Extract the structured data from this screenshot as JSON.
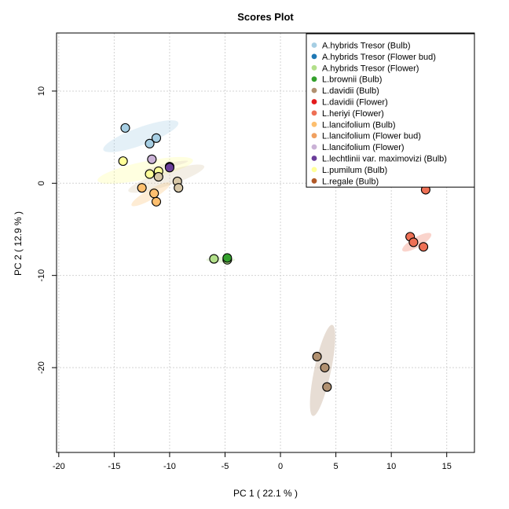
{
  "chart_data": {
    "type": "scatter",
    "title": "Scores Plot",
    "xlabel": "PC 1 ( 22.1 % )",
    "ylabel": "PC 2 ( 12.9 % )",
    "xlim": [
      -20.2,
      17.5
    ],
    "ylim": [
      -29.2,
      16.3
    ],
    "xticks": [
      -20,
      -15,
      -10,
      -5,
      0,
      5,
      10,
      15
    ],
    "yticks": [
      10,
      0,
      -10,
      -20
    ],
    "grid": true,
    "legend_position": "top-right",
    "series": [
      {
        "name": "A.hybrids Tresor (Bulb)",
        "color": "#a6cee3",
        "points": [
          [
            -14.0,
            6.0
          ],
          [
            -11.8,
            4.3
          ],
          [
            -11.2,
            4.9
          ]
        ],
        "ellipse": {
          "cx": -12.6,
          "cy": 5.1,
          "rx": 3.6,
          "ry": 0.8,
          "angle_deg": -20
        }
      },
      {
        "name": "A.hybrids Tresor (Flower bud)",
        "color": "#1f78b4",
        "points": [],
        "ellipse": null
      },
      {
        "name": "A.hybrids Tresor (Flower)",
        "color": "#b2df8a",
        "points": [
          [
            -6.0,
            -8.2
          ],
          [
            -4.8,
            -8.3
          ]
        ],
        "ellipse": {
          "cx": -5.4,
          "cy": -8.3,
          "rx": 1.3,
          "ry": 0.25,
          "angle_deg": 0
        }
      },
      {
        "name": "L.brownii (Bulb)",
        "color": "#33a02c",
        "points": [
          [
            -4.8,
            -8.1
          ]
        ],
        "ellipse": null
      },
      {
        "name": "L.davidii (Bulb)",
        "color": "#b09070",
        "points": [
          [
            3.3,
            -18.8
          ],
          [
            4.0,
            -20.0
          ],
          [
            4.2,
            -22.1
          ]
        ],
        "ellipse": {
          "cx": 3.8,
          "cy": -20.3,
          "rx": 4.2,
          "ry": 0.75,
          "angle_deg": -78
        }
      },
      {
        "name": "L.davidii (Flower)",
        "color": "#e31a1c",
        "points": [],
        "ellipse": null
      },
      {
        "name": "L.heriyi (Flower)",
        "color": "#ee7055",
        "points": [
          [
            11.7,
            -5.8
          ],
          [
            12.0,
            -6.4
          ],
          [
            12.9,
            -6.9
          ],
          [
            13.1,
            -0.7
          ]
        ],
        "ellipse": {
          "cx": 12.3,
          "cy": -6.4,
          "rx": 1.5,
          "ry": 0.45,
          "angle_deg": -30
        }
      },
      {
        "name": "L.lancifolium (Bulb)",
        "color": "#fdbf6f",
        "points": [
          [
            -12.5,
            -0.5
          ],
          [
            -11.4,
            -1.1
          ],
          [
            -11.2,
            -2.0
          ]
        ],
        "ellipse": {
          "cx": -11.7,
          "cy": -1.2,
          "rx": 2.0,
          "ry": 0.45,
          "angle_deg": -30
        }
      },
      {
        "name": "L.lancifolium (Flower bud)",
        "color": "#f0a060",
        "points": [],
        "ellipse": null
      },
      {
        "name": "L.lancifolium (Flower)",
        "color": "#cab2d6",
        "points": [
          [
            -11.6,
            2.6
          ],
          [
            -10.0,
            1.8
          ]
        ],
        "ellipse": {
          "cx": -10.3,
          "cy": 1.9,
          "rx": 2.0,
          "ry": 0.2,
          "angle_deg": -12
        }
      },
      {
        "name": "L.lechtlinii var. maximovizi (Bulb)",
        "color": "#6a3d9a",
        "points": [
          [
            -10.0,
            1.7
          ]
        ],
        "ellipse": null
      },
      {
        "name": "L.pumilum (Bulb)",
        "color": "#ffff99",
        "points": [
          [
            -14.2,
            2.4
          ],
          [
            -11.8,
            1.0
          ],
          [
            -11.0,
            1.3
          ]
        ],
        "ellipse": {
          "cx": -12.2,
          "cy": 1.4,
          "rx": 4.4,
          "ry": 0.8,
          "angle_deg": -12
        }
      },
      {
        "name": "L.regale (Bulb)",
        "color": "#b15928",
        "points": [],
        "ellipse": null
      },
      {
        "name": "",
        "color": "#d8c8a8",
        "points": [
          [
            -11.0,
            0.7
          ],
          [
            -9.3,
            0.2
          ],
          [
            -9.2,
            -0.5
          ]
        ],
        "ellipse": {
          "cx": -10.3,
          "cy": 0.5,
          "rx": 3.6,
          "ry": 0.65,
          "angle_deg": -18
        }
      }
    ]
  }
}
